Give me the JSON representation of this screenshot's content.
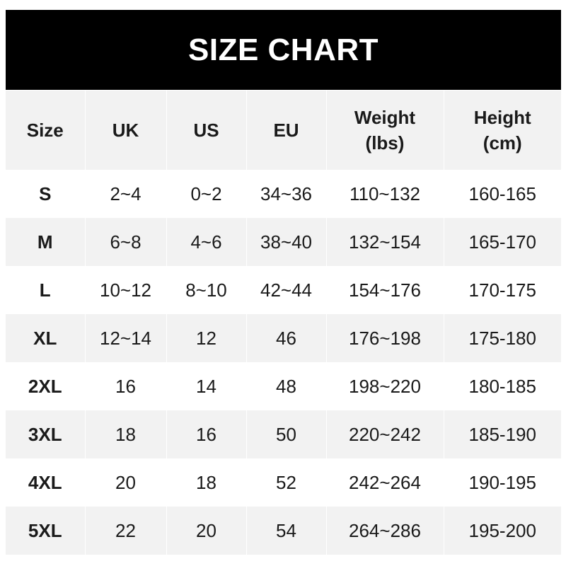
{
  "title": "SIZE CHART",
  "columns": [
    "Size",
    "UK",
    "US",
    "EU",
    "Weight\n(lbs)",
    "Height\n(cm)"
  ],
  "rows": [
    [
      "S",
      "2~4",
      "0~2",
      "34~36",
      "110~132",
      "160-165"
    ],
    [
      "M",
      "6~8",
      "4~6",
      "38~40",
      "132~154",
      "165-170"
    ],
    [
      "L",
      "10~12",
      "8~10",
      "42~44",
      "154~176",
      "170-175"
    ],
    [
      "XL",
      "12~14",
      "12",
      "46",
      "176~198",
      "175-180"
    ],
    [
      "2XL",
      "16",
      "14",
      "48",
      "198~220",
      "180-185"
    ],
    [
      "3XL",
      "18",
      "16",
      "50",
      "220~242",
      "185-190"
    ],
    [
      "4XL",
      "20",
      "18",
      "52",
      "242~264",
      "190-195"
    ],
    [
      "5XL",
      "22",
      "20",
      "54",
      "264~286",
      "195-200"
    ]
  ],
  "colors": {
    "header_bg": "#000000",
    "stripe": "#f2f2f2",
    "text": "#1a1a1a"
  }
}
